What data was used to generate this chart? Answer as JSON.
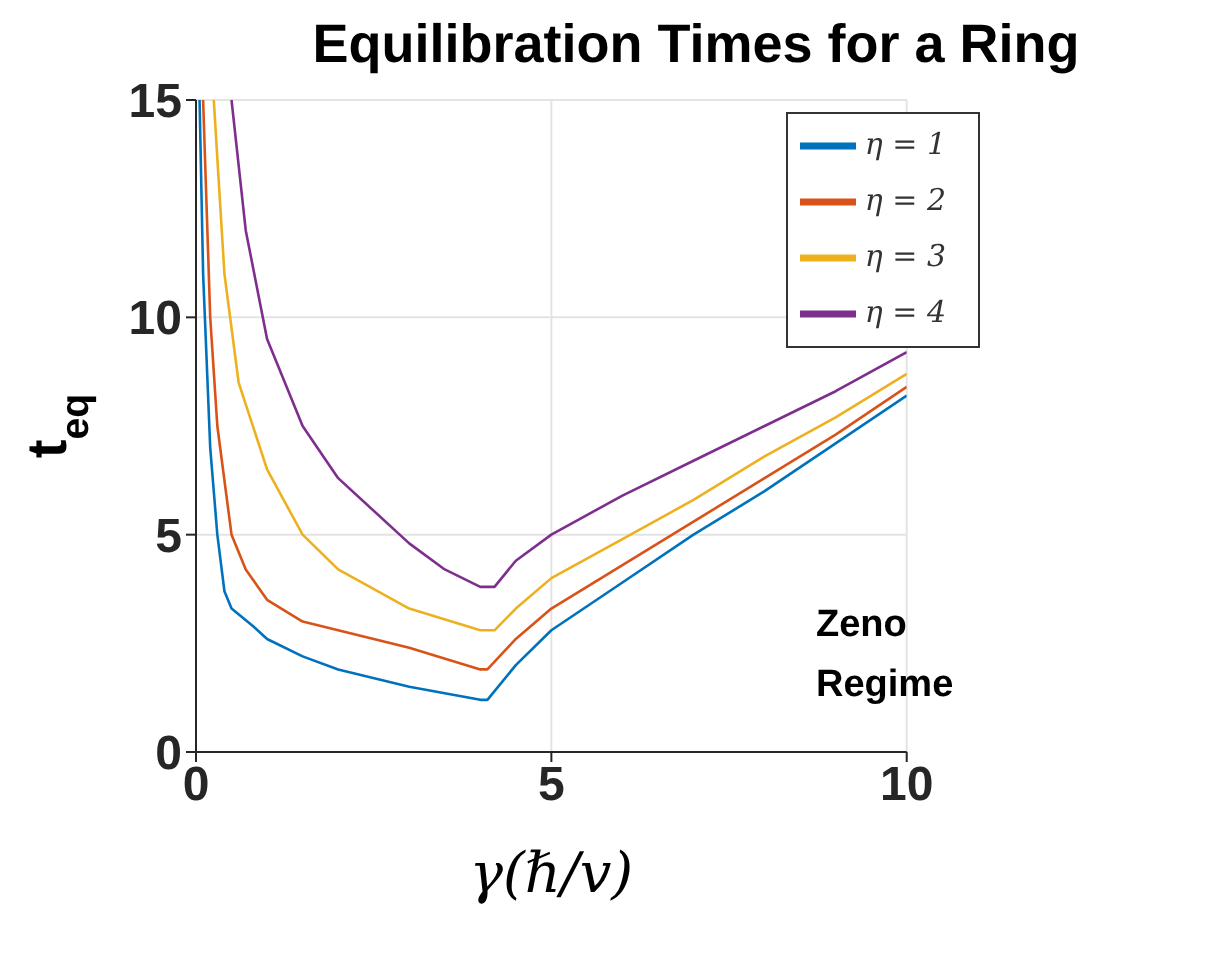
{
  "chart_data": {
    "type": "line",
    "title": "Equilibration Times for a Ring",
    "xlabel": "γ(ℏ/v)",
    "ylabel": "t$_{eq}$",
    "xlim": [
      0,
      10
    ],
    "ylim": [
      0,
      15
    ],
    "xticks": [
      0,
      5,
      10
    ],
    "yticks": [
      0,
      5,
      10,
      15
    ],
    "grid": true,
    "legend": "top right",
    "annotations": [
      "Zeno Regime"
    ],
    "series": [
      {
        "name": "η = 1",
        "color": "#0072bd",
        "x": [
          0.05,
          0.1,
          0.2,
          0.3,
          0.4,
          0.5,
          0.8,
          1,
          1.5,
          2,
          3,
          4,
          4.1,
          4.5,
          5,
          6,
          7,
          8,
          9,
          10
        ],
        "values": [
          15,
          11,
          7,
          5,
          3.7,
          3.3,
          2.9,
          2.6,
          2.2,
          1.9,
          1.5,
          1.2,
          1.2,
          2.0,
          2.8,
          3.9,
          5.0,
          6.0,
          7.1,
          8.2
        ]
      },
      {
        "name": "η = 2",
        "color": "#d95319",
        "x": [
          0.1,
          0.2,
          0.3,
          0.5,
          0.7,
          1,
          1.5,
          2,
          3,
          4,
          4.1,
          4.5,
          5,
          6,
          7,
          8,
          9,
          10
        ],
        "values": [
          15,
          10,
          7.5,
          5,
          4.2,
          3.5,
          3.0,
          2.8,
          2.4,
          1.9,
          1.9,
          2.6,
          3.3,
          4.3,
          5.3,
          6.3,
          7.3,
          8.4
        ]
      },
      {
        "name": "η = 3",
        "color": "#edb120",
        "x": [
          0.25,
          0.4,
          0.6,
          1,
          1.5,
          2,
          3,
          4,
          4.2,
          4.5,
          5,
          6,
          7,
          8,
          9,
          10
        ],
        "values": [
          15,
          11,
          8.5,
          6.5,
          5.0,
          4.2,
          3.3,
          2.8,
          2.8,
          3.3,
          4.0,
          4.9,
          5.8,
          6.8,
          7.7,
          8.7
        ]
      },
      {
        "name": "η = 4",
        "color": "#7e2f8e",
        "x": [
          0.5,
          0.7,
          1,
          1.5,
          2,
          3,
          3.5,
          4,
          4.2,
          4.5,
          5,
          6,
          7,
          8,
          9,
          10
        ],
        "values": [
          15,
          12,
          9.5,
          7.5,
          6.3,
          4.8,
          4.2,
          3.8,
          3.8,
          4.4,
          5.0,
          5.9,
          6.7,
          7.5,
          8.3,
          9.2
        ]
      }
    ]
  }
}
